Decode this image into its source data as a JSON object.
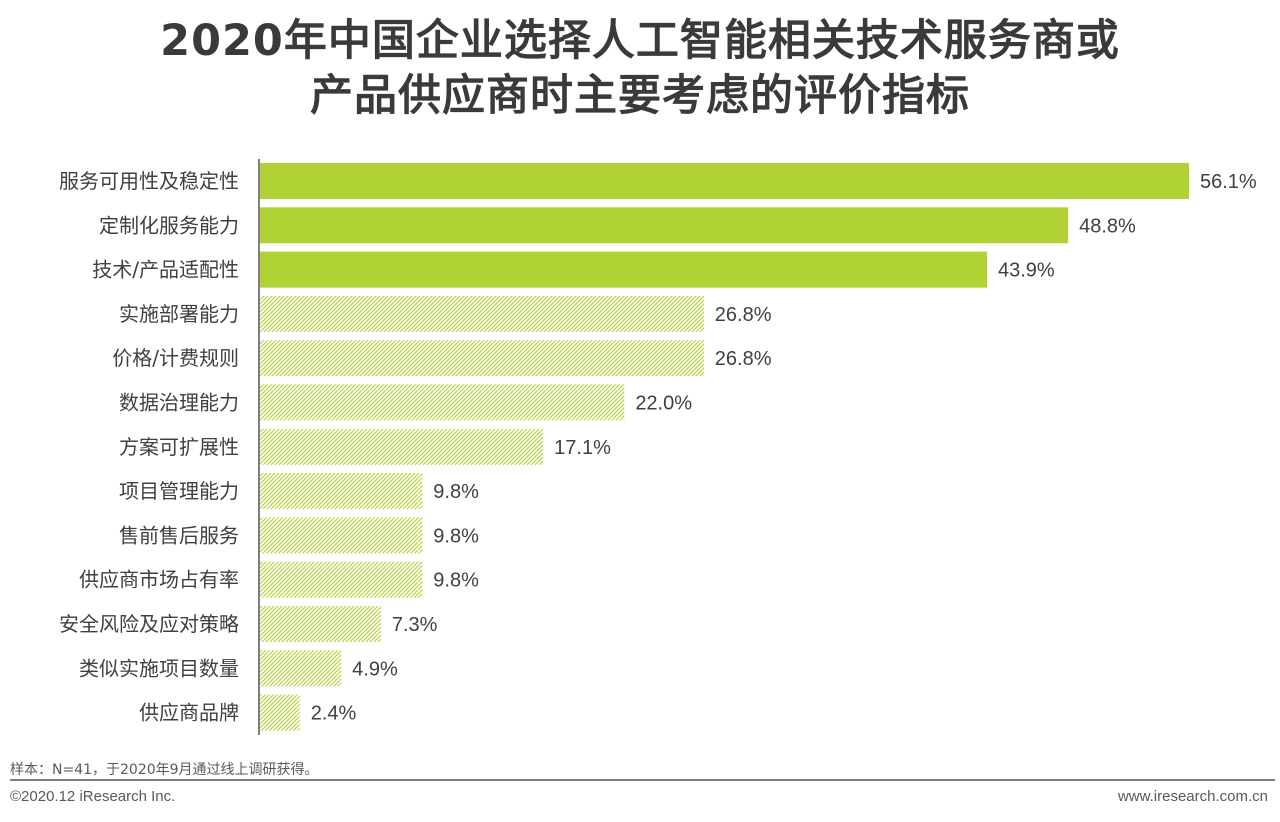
{
  "title": {
    "line1": "2020年中国企业选择人工智能相关技术服务商或",
    "line2": "产品供应商时主要考虑的评价指标"
  },
  "chart_data": {
    "type": "bar",
    "orientation": "horizontal",
    "categories": [
      "服务可用性及稳定性",
      "定制化服务能力",
      "技术/产品适配性",
      "实施部署能力",
      "价格/计费规则",
      "数据治理能力",
      "方案可扩展性",
      "项目管理能力",
      "售前售后服务",
      "供应商市场占有率",
      "安全风险及应对策略",
      "类似实施项目数量",
      "供应商品牌"
    ],
    "values": [
      56.1,
      48.8,
      43.9,
      26.8,
      26.8,
      22.0,
      17.1,
      9.8,
      9.8,
      9.8,
      7.3,
      4.9,
      2.4
    ],
    "value_labels": [
      "56.1%",
      "48.8%",
      "43.9%",
      "26.8%",
      "26.8%",
      "22.0%",
      "17.1%",
      "9.8%",
      "9.8%",
      "9.8%",
      "7.3%",
      "4.9%",
      "2.4%"
    ],
    "highlight_top": 3,
    "colors": {
      "solid": "#b1d235",
      "pattern": "#b1d235",
      "axis": "#7f7f7f"
    },
    "xlim": [
      0,
      56.1
    ],
    "grid": false,
    "legend": "none"
  },
  "footer": {
    "note": "样本：N=41，于2020年9月通过线上调研获得。",
    "copyright": "©2020.12 iResearch Inc.",
    "website": "www.iresearch.com.cn"
  }
}
